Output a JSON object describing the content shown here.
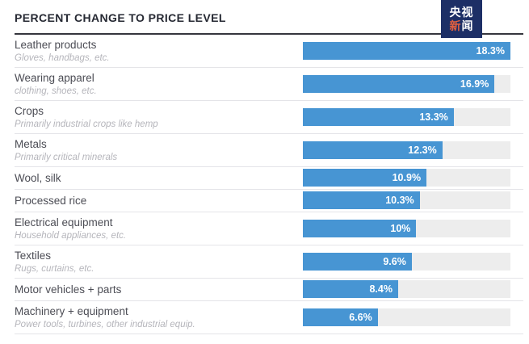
{
  "header": {
    "title": "PERCENT CHANGE TO PRICE LEVEL"
  },
  "logo": {
    "line1": "央视",
    "line2_char1": "新",
    "line2_char2": "闻",
    "background_color": "#1d2f66",
    "accent_color": "#e2603f",
    "text_color": "#ffffff"
  },
  "chart_data": {
    "type": "bar",
    "orientation": "horizontal",
    "title": "PERCENT CHANGE TO PRICE LEVEL",
    "categories": [
      "Leather products",
      "Wearing apparel",
      "Crops",
      "Metals",
      "Wool, silk",
      "Processed rice",
      "Electrical equipment",
      "Textiles",
      "Motor vehicles + parts",
      "Machinery + equipment"
    ],
    "category_subtitles": [
      "Gloves, handbags, etc.",
      "clothing, shoes, etc.",
      "Primarily industrial crops like hemp",
      "Primarily critical minerals",
      "",
      "",
      "Household appliances, etc.",
      "Rugs, curtains, etc.",
      "",
      "Power tools, turbines, other industrial equip."
    ],
    "values": [
      18.3,
      16.9,
      13.3,
      12.3,
      10.9,
      10.3,
      10,
      9.6,
      8.4,
      6.6
    ],
    "value_labels": [
      "18.3%",
      "16.9%",
      "13.3%",
      "12.3%",
      "10.9%",
      "10.3%",
      "10%",
      "9.6%",
      "8.4%",
      "6.6%"
    ],
    "xlim": [
      0,
      18.3
    ],
    "bar_color": "#4795d3",
    "track_color": "#ededed",
    "value_label_position": "inside-right",
    "grid": false,
    "legend": false
  }
}
